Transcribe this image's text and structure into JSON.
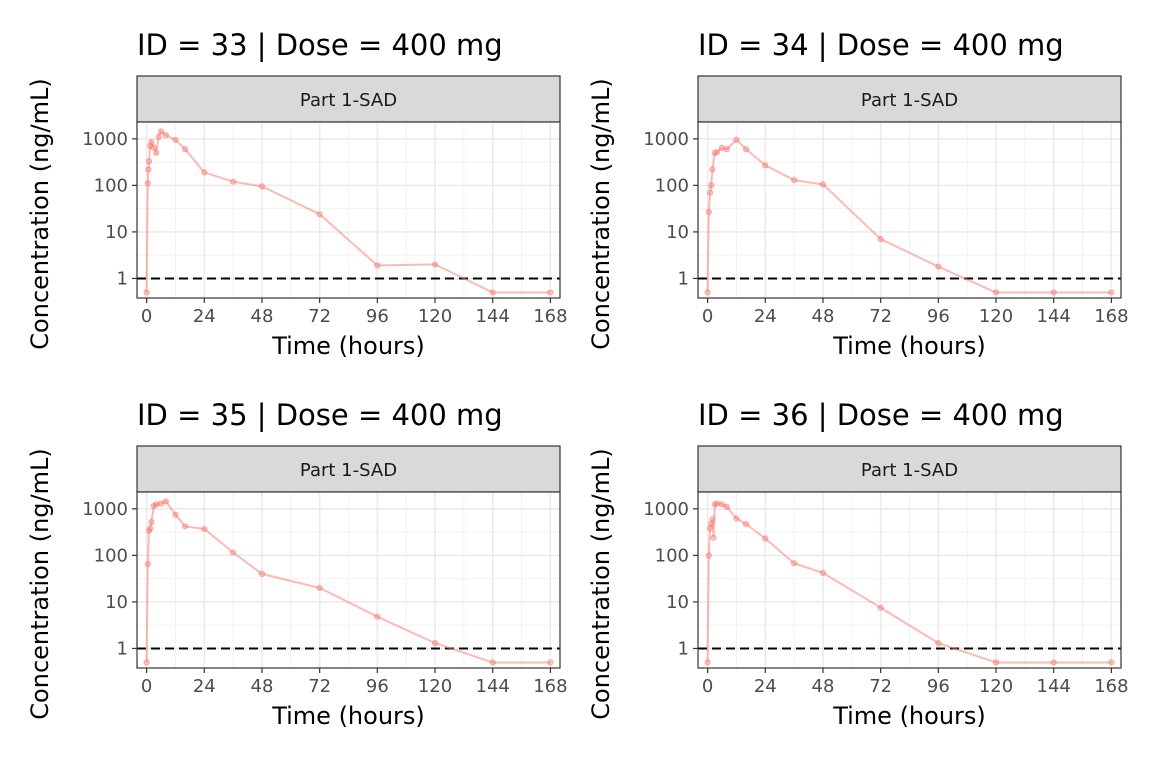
{
  "chart_data": [
    {
      "type": "line",
      "title": "ID = 33 | Dose = 400 mg",
      "facet_label": "Part 1-SAD",
      "xlabel": "Time (hours)",
      "ylabel": "Concentration (ng/mL)",
      "x_scale": "linear",
      "y_scale": "log10",
      "xlim": [
        -4,
        172
      ],
      "ylim": [
        0.38,
        2300
      ],
      "x_ticks": [
        0,
        24,
        48,
        72,
        96,
        120,
        144,
        168
      ],
      "y_ticks": [
        1,
        10,
        100,
        1000
      ],
      "y_tick_labels": [
        "1",
        "10",
        "100",
        "1000"
      ],
      "reference_line": {
        "y": 1,
        "style": "dashed"
      },
      "grid": true,
      "series_color": "#F8766D",
      "series": [
        {
          "x": [
            0,
            0.5,
            0.75,
            1,
            1.5,
            2,
            3,
            4,
            5,
            6,
            8,
            12,
            16,
            24,
            36,
            48,
            72,
            96,
            120,
            144,
            168
          ],
          "y": [
            0.5,
            110,
            220,
            330,
            700,
            850,
            650,
            500,
            1100,
            1450,
            1200,
            950,
            600,
            190,
            120,
            95,
            24,
            1.9,
            2.0,
            0.5,
            0.5
          ]
        }
      ]
    },
    {
      "type": "line",
      "title": "ID = 34 | Dose = 400 mg",
      "facet_label": "Part 1-SAD",
      "xlabel": "Time (hours)",
      "ylabel": "Concentration (ng/mL)",
      "x_scale": "linear",
      "y_scale": "log10",
      "xlim": [
        -4,
        172
      ],
      "ylim": [
        0.38,
        2300
      ],
      "x_ticks": [
        0,
        24,
        48,
        72,
        96,
        120,
        144,
        168
      ],
      "y_ticks": [
        1,
        10,
        100,
        1000
      ],
      "y_tick_labels": [
        "1",
        "10",
        "100",
        "1000"
      ],
      "reference_line": {
        "y": 1,
        "style": "dashed"
      },
      "grid": true,
      "series_color": "#F8766D",
      "series": [
        {
          "x": [
            0,
            0.5,
            1,
            1.5,
            2,
            3,
            4,
            6,
            8,
            12,
            16,
            24,
            36,
            48,
            72,
            96,
            120,
            144,
            168
          ],
          "y": [
            0.5,
            27,
            70,
            100,
            220,
            500,
            520,
            640,
            600,
            960,
            600,
            270,
            130,
            105,
            7,
            1.8,
            0.5,
            0.5,
            0.5
          ]
        }
      ]
    },
    {
      "type": "line",
      "title": "ID = 35 | Dose = 400 mg",
      "facet_label": "Part 1-SAD",
      "xlabel": "Time (hours)",
      "ylabel": "Concentration (ng/mL)",
      "x_scale": "linear",
      "y_scale": "log10",
      "xlim": [
        -4,
        172
      ],
      "ylim": [
        0.38,
        2300
      ],
      "x_ticks": [
        0,
        24,
        48,
        72,
        96,
        120,
        144,
        168
      ],
      "y_ticks": [
        1,
        10,
        100,
        1000
      ],
      "y_tick_labels": [
        "1",
        "10",
        "100",
        "1000"
      ],
      "reference_line": {
        "y": 1,
        "style": "dashed"
      },
      "grid": true,
      "series_color": "#F8766D",
      "series": [
        {
          "x": [
            0,
            0.5,
            1,
            1.5,
            2,
            3,
            4,
            6,
            8,
            12,
            16,
            24,
            36,
            48,
            72,
            96,
            120,
            144,
            168
          ],
          "y": [
            0.5,
            65,
            340,
            380,
            520,
            1150,
            1250,
            1300,
            1450,
            750,
            420,
            370,
            115,
            40,
            20,
            4.8,
            1.3,
            0.5,
            0.5
          ]
        }
      ]
    },
    {
      "type": "line",
      "title": "ID = 36 | Dose = 400 mg",
      "facet_label": "Part 1-SAD",
      "xlabel": "Time (hours)",
      "ylabel": "Concentration (ng/mL)",
      "x_scale": "linear",
      "y_scale": "log10",
      "xlim": [
        -4,
        172
      ],
      "ylim": [
        0.38,
        2300
      ],
      "x_ticks": [
        0,
        24,
        48,
        72,
        96,
        120,
        144,
        168
      ],
      "y_ticks": [
        1,
        10,
        100,
        1000
      ],
      "y_tick_labels": [
        "1",
        "10",
        "100",
        "1000"
      ],
      "reference_line": {
        "y": 1,
        "style": "dashed"
      },
      "grid": true,
      "series_color": "#F8766D",
      "series": [
        {
          "x": [
            0,
            0.5,
            1,
            1.5,
            2,
            2.5,
            3,
            4,
            6,
            8,
            12,
            16,
            24,
            36,
            48,
            72,
            96,
            120,
            144,
            168
          ],
          "y": [
            0.5,
            100,
            380,
            480,
            600,
            240,
            1250,
            1300,
            1250,
            1100,
            620,
            470,
            230,
            68,
            42,
            7.5,
            1.3,
            0.5,
            0.5,
            0.5
          ]
        }
      ]
    }
  ]
}
